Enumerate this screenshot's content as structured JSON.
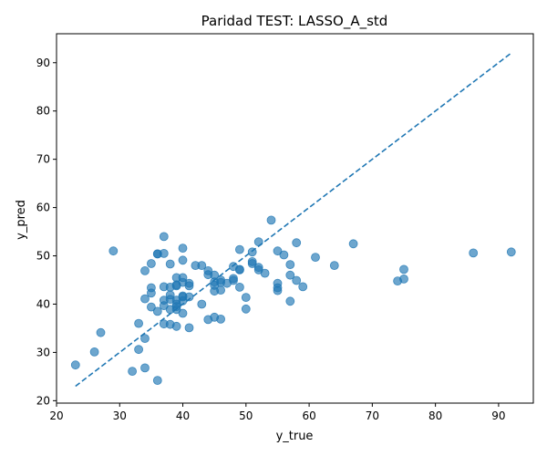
{
  "chart_data": {
    "type": "scatter",
    "title": "Paridad TEST: LASSO_A_std",
    "xlabel": "y_true",
    "ylabel": "y_pred",
    "xlim": [
      20,
      95.5
    ],
    "ylim": [
      19.5,
      96
    ],
    "xticks": [
      20,
      30,
      40,
      50,
      60,
      70,
      80,
      90
    ],
    "yticks": [
      20,
      30,
      40,
      50,
      60,
      70,
      80,
      90
    ],
    "grid": false,
    "colors": {
      "points": "#1f77b4",
      "identity_line": "#1f77b4"
    },
    "identity_line": {
      "x": [
        23,
        92
      ],
      "y": [
        23,
        92
      ],
      "style": "dashed"
    },
    "points": [
      [
        23,
        27.4
      ],
      [
        26,
        30.1
      ],
      [
        27,
        34.1
      ],
      [
        29,
        51.0
      ],
      [
        32,
        26.1
      ],
      [
        33,
        30.6
      ],
      [
        33,
        36.0
      ],
      [
        34,
        26.8
      ],
      [
        34,
        32.9
      ],
      [
        34,
        41.1
      ],
      [
        34,
        46.9
      ],
      [
        35,
        39.4
      ],
      [
        35,
        42.3
      ],
      [
        35,
        43.4
      ],
      [
        35,
        48.4
      ],
      [
        36,
        24.2
      ],
      [
        36,
        38.5
      ],
      [
        36,
        50.4
      ],
      [
        36,
        50.4
      ],
      [
        37,
        35.9
      ],
      [
        37,
        39.7
      ],
      [
        37,
        40.8
      ],
      [
        37,
        43.6
      ],
      [
        37,
        50.5
      ],
      [
        37,
        54.0
      ],
      [
        38,
        35.8
      ],
      [
        38,
        38.9
      ],
      [
        38,
        41.0
      ],
      [
        38,
        41.9
      ],
      [
        38,
        43.5
      ],
      [
        38,
        48.3
      ],
      [
        39,
        35.4
      ],
      [
        39,
        38.9
      ],
      [
        39,
        39.5
      ],
      [
        39,
        40.0
      ],
      [
        39,
        40.8
      ],
      [
        39,
        43.8
      ],
      [
        39,
        44.0
      ],
      [
        39,
        45.5
      ],
      [
        40,
        38.1
      ],
      [
        40,
        40.7
      ],
      [
        40,
        41.5
      ],
      [
        40,
        41.7
      ],
      [
        40,
        44.5
      ],
      [
        40,
        45.5
      ],
      [
        40,
        49.1
      ],
      [
        40,
        51.6
      ],
      [
        41,
        35.1
      ],
      [
        41,
        41.5
      ],
      [
        41,
        43.8
      ],
      [
        41,
        44.3
      ],
      [
        42,
        48.0
      ],
      [
        43,
        40.0
      ],
      [
        43,
        48.0
      ],
      [
        44,
        36.8
      ],
      [
        44,
        46.1
      ],
      [
        44,
        46.9
      ],
      [
        45,
        37.3
      ],
      [
        45,
        42.7
      ],
      [
        45,
        43.9
      ],
      [
        45,
        44.6
      ],
      [
        45,
        46.0
      ],
      [
        46,
        36.9
      ],
      [
        46,
        42.9
      ],
      [
        46,
        44.5
      ],
      [
        46,
        45.0
      ],
      [
        47,
        44.3
      ],
      [
        48,
        44.9
      ],
      [
        48,
        45.3
      ],
      [
        48,
        47.8
      ],
      [
        49,
        43.5
      ],
      [
        49,
        47.1
      ],
      [
        49,
        47.2
      ],
      [
        49,
        51.3
      ],
      [
        50,
        39.0
      ],
      [
        50,
        41.4
      ],
      [
        51,
        48.4
      ],
      [
        51,
        48.8
      ],
      [
        51,
        50.8
      ],
      [
        52,
        47.1
      ],
      [
        52,
        47.6
      ],
      [
        52,
        52.9
      ],
      [
        53,
        46.4
      ],
      [
        54,
        57.4
      ],
      [
        55,
        42.8
      ],
      [
        55,
        43.4
      ],
      [
        55,
        44.3
      ],
      [
        55,
        51.0
      ],
      [
        56,
        50.2
      ],
      [
        57,
        40.6
      ],
      [
        57,
        46.0
      ],
      [
        57,
        48.2
      ],
      [
        58,
        44.9
      ],
      [
        58,
        52.7
      ],
      [
        59,
        43.6
      ],
      [
        61,
        49.7
      ],
      [
        64,
        48.0
      ],
      [
        67,
        52.5
      ],
      [
        74,
        44.8
      ],
      [
        75,
        45.2
      ],
      [
        75,
        47.2
      ],
      [
        86,
        50.6
      ],
      [
        92,
        50.8
      ]
    ]
  }
}
